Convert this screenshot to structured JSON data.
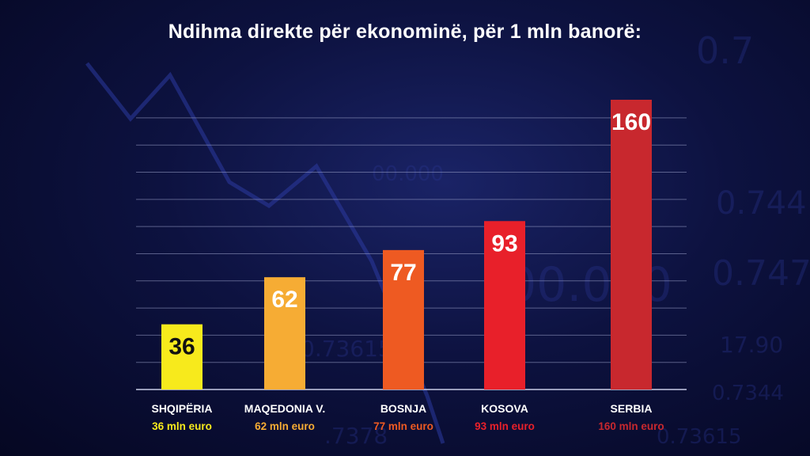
{
  "chart_data": {
    "type": "bar",
    "title": "Ndihma direkte për ekonominë, për 1 mln banorë:",
    "categories": [
      "SHQIPËRIA",
      "MAQEDONIA V.",
      "BOSNJA",
      "KOSOVA",
      "SERBIA"
    ],
    "values": [
      36,
      62,
      77,
      93,
      160
    ],
    "value_labels": [
      "36",
      "62",
      "77",
      "93",
      "160"
    ],
    "sublabels": [
      "36 mln euro",
      "62 mln euro",
      "77 mln euro",
      "93 mln euro",
      "160 mln euro"
    ],
    "colors": [
      "#f7ea1c",
      "#f6ac34",
      "#ee5a22",
      "#e8202a",
      "#c8282e"
    ],
    "label_colors": [
      "#111111",
      "#ffffff",
      "#ffffff",
      "#ffffff",
      "#ffffff"
    ],
    "ylim": [
      0,
      160
    ],
    "grid": true
  }
}
